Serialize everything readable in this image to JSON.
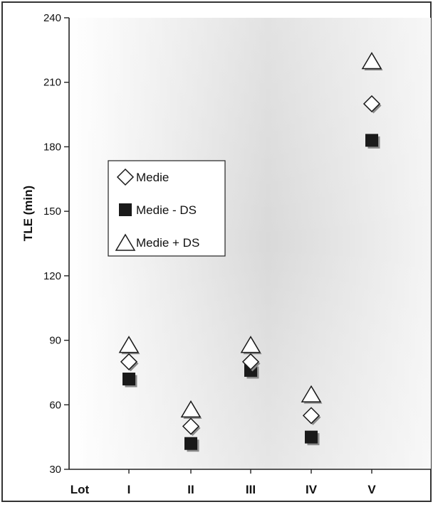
{
  "chart_data": {
    "type": "scatter",
    "xlabel": "Lot",
    "ylabel": "TLE (min)",
    "categories": [
      "I",
      "II",
      "III",
      "IV",
      "V"
    ],
    "ylim": [
      30,
      240
    ],
    "yticks": [
      30,
      60,
      90,
      120,
      150,
      180,
      210,
      240
    ],
    "grid": false,
    "legend_position": "upper-left",
    "series": [
      {
        "name": "Medie",
        "marker": "diamond-open",
        "values": [
          80,
          50,
          80,
          55,
          200
        ]
      },
      {
        "name": "Medie - DS",
        "marker": "square-filled",
        "values": [
          72,
          42,
          76,
          45,
          183
        ]
      },
      {
        "name": "Medie + DS",
        "marker": "triangle-open",
        "values": [
          88,
          58,
          88,
          65,
          220
        ]
      }
    ]
  },
  "colors": {
    "marker_fill_open": "#ffffff",
    "marker_fill_dark": "#1a1a1a",
    "marker_stroke": "#1a1a1a",
    "marker_shadow": "#8a8a8a",
    "plot_bg_light": "#ffffff",
    "plot_bg_mid": "#dcdcdc",
    "axis": "#222222",
    "text": "#111111"
  }
}
